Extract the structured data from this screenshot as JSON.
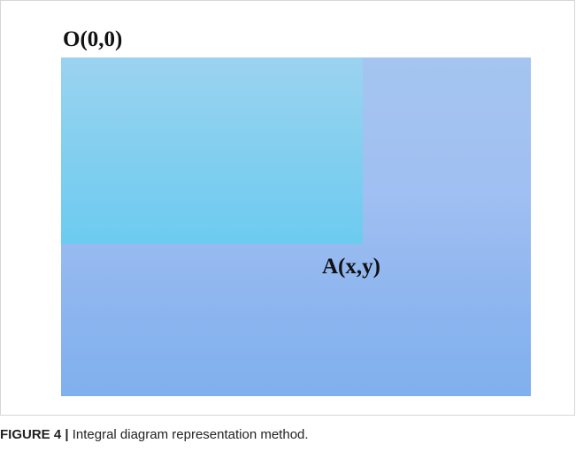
{
  "figure": {
    "origin_label": "O(0,0)",
    "point_label": "A(x,y)",
    "caption_label": "FIGURE 4 |",
    "caption_text": "Integral diagram representation method.",
    "colors": {
      "outer_rect": "#a0bff2",
      "inner_rect": "#86cfef",
      "label_text": "#111111"
    }
  }
}
